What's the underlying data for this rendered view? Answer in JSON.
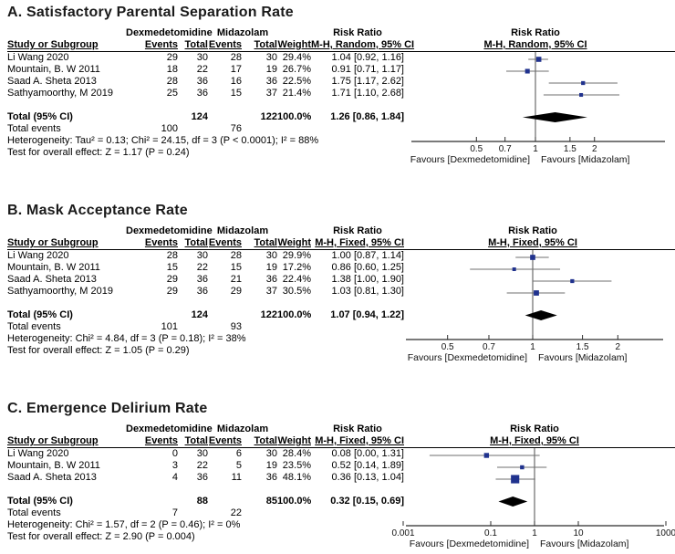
{
  "figure": {
    "background": "#ffffff"
  },
  "colors": {
    "marker": "#20328e",
    "ci_line": "#6f6f6f",
    "axis": "#2b2b2b",
    "null_line": "#4d4d4d",
    "diamond": "#000000"
  },
  "chart_data": [
    {
      "type": "scatter",
      "subtype": "forest-plot",
      "title": "A. Satisfactory Parental Separation Rate",
      "group1": "Dexmedetomidine",
      "group2": "Midazolam",
      "effect_label": "Risk Ratio",
      "method_label": "M-H, Random, 95% CI",
      "columns": {
        "study": "Study or Subgroup",
        "events": "Events",
        "total": "Total",
        "weight": "Weight"
      },
      "studies": [
        {
          "name": "Li Wang 2020",
          "events1": "29",
          "total1": "30",
          "events2": "28",
          "total2": "30",
          "weight": "29.4%",
          "ci_text": "1.04 [0.92, 1.16]",
          "est": 1.04,
          "lo": 0.92,
          "hi": 1.16,
          "w": 29.4
        },
        {
          "name": "Mountain, B. W 2011",
          "events1": "18",
          "total1": "22",
          "events2": "17",
          "total2": "19",
          "weight": "26.7%",
          "ci_text": "0.91 [0.71, 1.17]",
          "est": 0.91,
          "lo": 0.71,
          "hi": 1.17,
          "w": 26.7
        },
        {
          "name": "Saad A. Sheta 2013",
          "events1": "28",
          "total1": "36",
          "events2": "16",
          "total2": "36",
          "weight": "22.5%",
          "ci_text": "1.75 [1.17, 2.62]",
          "est": 1.75,
          "lo": 1.17,
          "hi": 2.62,
          "w": 22.5
        },
        {
          "name": "Sathyamoorthy, M 2019",
          "events1": "25",
          "total1": "36",
          "events2": "15",
          "total2": "37",
          "weight": "21.4%",
          "ci_text": "1.71 [1.10, 2.68]",
          "est": 1.71,
          "lo": 1.1,
          "hi": 2.68,
          "w": 21.4
        }
      ],
      "total": {
        "label": "Total (95% CI)",
        "total1": "124",
        "total2": "122",
        "weight": "100.0%",
        "ci_text": "1.26 [0.86, 1.84]",
        "est": 1.26,
        "lo": 0.86,
        "hi": 1.84
      },
      "total_events": {
        "label": "Total events",
        "events1": "100",
        "events2": "76"
      },
      "heterogeneity": "Heterogeneity: Tau² = 0.13; Chi² = 24.15, df = 3 (P < 0.0001); I² = 88%",
      "overall_test": "Test for overall effect: Z = 1.17 (P = 0.24)",
      "axis": {
        "scale": "log",
        "ticks": [
          0.5,
          0.7,
          1,
          1.5,
          2
        ],
        "tick_labels": [
          "0.5",
          "0.7",
          "1",
          "1.5",
          "2"
        ],
        "favours_left": "Favours [Dexmedetomidine]",
        "favours_right": "Favours [Midazolam]"
      }
    },
    {
      "type": "scatter",
      "subtype": "forest-plot",
      "title": "B. Mask Acceptance Rate",
      "group1": "Dexmedetomidine",
      "group2": "Midazolam",
      "effect_label": "Risk Ratio",
      "method_label": "M-H, Fixed, 95% CI",
      "columns": {
        "study": "Study or Subgroup",
        "events": "Events",
        "total": "Total",
        "weight": "Weight"
      },
      "studies": [
        {
          "name": "Li Wang 2020",
          "events1": "28",
          "total1": "30",
          "events2": "28",
          "total2": "30",
          "weight": "29.9%",
          "ci_text": "1.00 [0.87, 1.14]",
          "est": 1.0,
          "lo": 0.87,
          "hi": 1.14,
          "w": 29.9
        },
        {
          "name": "Mountain, B. W 2011",
          "events1": "15",
          "total1": "22",
          "events2": "15",
          "total2": "19",
          "weight": "17.2%",
          "ci_text": "0.86 [0.60, 1.25]",
          "est": 0.86,
          "lo": 0.6,
          "hi": 1.25,
          "w": 17.2
        },
        {
          "name": "Saad A. Sheta 2013",
          "events1": "29",
          "total1": "36",
          "events2": "21",
          "total2": "36",
          "weight": "22.4%",
          "ci_text": "1.38 [1.00, 1.90]",
          "est": 1.38,
          "lo": 1.0,
          "hi": 1.9,
          "w": 22.4
        },
        {
          "name": "Sathyamoorthy, M 2019",
          "events1": "29",
          "total1": "36",
          "events2": "29",
          "total2": "37",
          "weight": "30.5%",
          "ci_text": "1.03 [0.81, 1.30]",
          "est": 1.03,
          "lo": 0.81,
          "hi": 1.3,
          "w": 30.5
        }
      ],
      "total": {
        "label": "Total (95% CI)",
        "total1": "124",
        "total2": "122",
        "weight": "100.0%",
        "ci_text": "1.07 [0.94, 1.22]",
        "est": 1.07,
        "lo": 0.94,
        "hi": 1.22
      },
      "total_events": {
        "label": "Total events",
        "events1": "101",
        "events2": "93"
      },
      "heterogeneity": "Heterogeneity: Chi² = 4.84, df = 3 (P = 0.18); I² = 38%",
      "overall_test": "Test for overall effect: Z = 1.05 (P = 0.29)",
      "axis": {
        "scale": "log",
        "ticks": [
          0.5,
          0.7,
          1,
          1.5,
          2
        ],
        "tick_labels": [
          "0.5",
          "0.7",
          "1",
          "1.5",
          "2"
        ],
        "favours_left": "Favours [Dexmedetomidine]",
        "favours_right": "Favours [Midazolam]"
      }
    },
    {
      "type": "scatter",
      "subtype": "forest-plot",
      "title": "C. Emergence Delirium Rate",
      "group1": "Dexmedetomidine",
      "group2": "Midazolam",
      "effect_label": "Risk Ratio",
      "method_label": "M-H, Fixed, 95% CI",
      "columns": {
        "study": "Study or Subgroup",
        "events": "Events",
        "total": "Total",
        "weight": "Weight"
      },
      "studies": [
        {
          "name": "Li Wang 2020",
          "events1": "0",
          "total1": "30",
          "events2": "6",
          "total2": "30",
          "weight": "28.4%",
          "ci_text": "0.08 [0.00, 1.31]",
          "est": 0.08,
          "lo": 0.0,
          "lo_draw": 0.004,
          "hi": 1.31,
          "w": 28.4
        },
        {
          "name": "Mountain, B. W 2011",
          "events1": "3",
          "total1": "22",
          "events2": "5",
          "total2": "19",
          "weight": "23.5%",
          "ci_text": "0.52 [0.14, 1.89]",
          "est": 0.52,
          "lo": 0.14,
          "hi": 1.89,
          "w": 23.5
        },
        {
          "name": "Saad A. Sheta 2013",
          "events1": "4",
          "total1": "36",
          "events2": "11",
          "total2": "36",
          "weight": "48.1%",
          "ci_text": "0.36 [0.13, 1.04]",
          "est": 0.36,
          "lo": 0.13,
          "hi": 1.04,
          "w": 48.1
        }
      ],
      "total": {
        "label": "Total (95% CI)",
        "total1": "88",
        "total2": "85",
        "weight": "100.0%",
        "ci_text": "0.32 [0.15, 0.69]",
        "est": 0.32,
        "lo": 0.15,
        "hi": 0.69
      },
      "total_events": {
        "label": "Total events",
        "events1": "7",
        "events2": "22"
      },
      "heterogeneity": "Heterogeneity: Chi² = 1.57, df = 2 (P = 0.46); I² = 0%",
      "overall_test": "Test for overall effect: Z = 2.90 (P = 0.004)",
      "axis": {
        "scale": "log",
        "ticks": [
          0.001,
          0.1,
          1,
          10,
          1000
        ],
        "tick_labels": [
          "0.001",
          "0.1",
          "1",
          "10",
          "1000"
        ],
        "favours_left": "Favours [Dexmedetomidine]",
        "favours_right": "Favours [Midazolam]"
      }
    }
  ]
}
